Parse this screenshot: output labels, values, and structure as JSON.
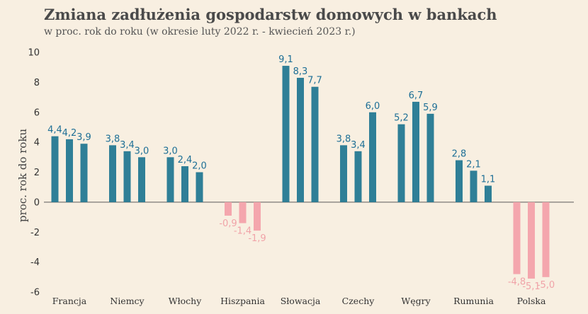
{
  "chart_data": {
    "type": "bar",
    "title": "Zmiana zadłużenia gospodarstw domowych w bankach",
    "subtitle": "w proc. rok do roku (w okresie luty 2022 r. - kwiecień 2023 r.)",
    "ylabel": "proc. rok do roku",
    "xlabel": "",
    "ylim": [
      -6,
      10
    ],
    "yticks": [
      -6,
      -4,
      -2,
      0,
      2,
      4,
      6,
      8,
      10
    ],
    "grid": false,
    "legend": "none",
    "colors": {
      "positive": "#2f7f97",
      "negative": "#f4a6ad",
      "positive_label": "#1e6f96",
      "negative_label": "#f0a3a8"
    },
    "categories": [
      "Francja",
      "Niemcy",
      "Włochy",
      "Hiszpania",
      "Słowacja",
      "Czechy",
      "Węgry",
      "Rumunia",
      "Polska"
    ],
    "groups": [
      {
        "category": "Francja",
        "values": [
          4.4,
          4.2,
          3.9
        ],
        "labels": [
          "4,4",
          "4,2",
          "3,9"
        ]
      },
      {
        "category": "Niemcy",
        "values": [
          3.8,
          3.4,
          3.0
        ],
        "labels": [
          "3,8",
          "3,4",
          "3,0"
        ]
      },
      {
        "category": "Włochy",
        "values": [
          3.0,
          2.4,
          2.0
        ],
        "labels": [
          "3,0",
          "2,4",
          "2,0"
        ]
      },
      {
        "category": "Hiszpania",
        "values": [
          -0.9,
          -1.4,
          -1.9
        ],
        "labels": [
          "-0,9",
          "-1,4",
          "-1,9"
        ]
      },
      {
        "category": "Słowacja",
        "values": [
          9.1,
          8.3,
          7.7
        ],
        "labels": [
          "9,1",
          "8,3",
          "7,7"
        ]
      },
      {
        "category": "Czechy",
        "values": [
          3.8,
          3.4,
          6.0
        ],
        "labels": [
          "3,8",
          "3,4",
          "6,0"
        ]
      },
      {
        "category": "Węgry",
        "values": [
          5.2,
          6.7,
          5.9
        ],
        "labels": [
          "5,2",
          "6,7",
          "5,9"
        ]
      },
      {
        "category": "Rumunia",
        "values": [
          2.8,
          2.1,
          1.1
        ],
        "labels": [
          "2,8",
          "2,1",
          "1,1"
        ]
      },
      {
        "category": "Polska",
        "values": [
          -4.8,
          -5.1,
          -5.0
        ],
        "labels": [
          "-4,8",
          "-5,1",
          "-5,0"
        ]
      }
    ]
  }
}
